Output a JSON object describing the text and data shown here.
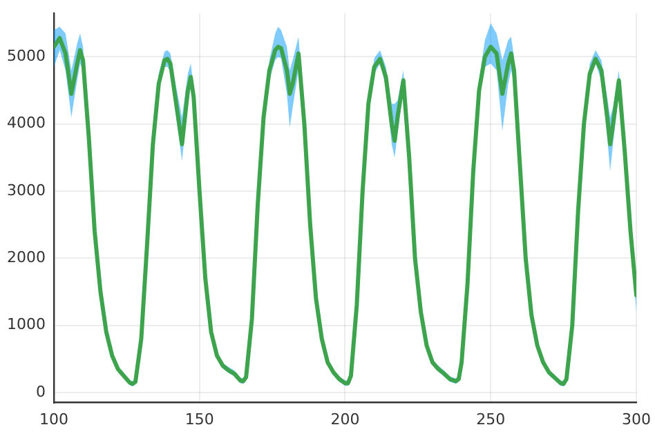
{
  "chart_data": {
    "type": "line",
    "xlim": [
      100,
      300
    ],
    "xticks": [
      100,
      150,
      200,
      250,
      300
    ],
    "ylim": [
      -150,
      5650
    ],
    "yticks": [
      0,
      1000,
      2000,
      3000,
      4000,
      5000
    ],
    "grid": true,
    "legend": false,
    "marker": "none",
    "line_style": "solid",
    "x": [
      100,
      102,
      104,
      106,
      108,
      109,
      110,
      112,
      114,
      116,
      118,
      120,
      122,
      124,
      126,
      127,
      128,
      130,
      132,
      134,
      136,
      138,
      139,
      140,
      142,
      144,
      146,
      147,
      148,
      150,
      152,
      154,
      156,
      158,
      160,
      162,
      164,
      165,
      166,
      168,
      170,
      172,
      174,
      176,
      177,
      178,
      180,
      181,
      182,
      184,
      186,
      188,
      190,
      192,
      194,
      196,
      198,
      200,
      201,
      202,
      204,
      206,
      208,
      210,
      212,
      214,
      216,
      217,
      218,
      220,
      222,
      224,
      226,
      228,
      230,
      232,
      234,
      236,
      238,
      239,
      240,
      242,
      244,
      246,
      248,
      250,
      252,
      254,
      256,
      257,
      258,
      260,
      262,
      264,
      266,
      268,
      270,
      272,
      274,
      275,
      276,
      278,
      280,
      282,
      284,
      286,
      288,
      290,
      291,
      292,
      294,
      296,
      298,
      300
    ],
    "series": [
      {
        "color": "#009af9",
        "values": [
          null,
          null,
          null,
          null,
          null,
          null,
          null,
          null,
          null,
          null,
          null,
          null,
          null,
          null,
          null,
          null,
          null,
          null,
          null,
          null,
          null,
          null,
          null,
          null,
          null,
          null,
          null,
          null,
          null,
          null,
          null,
          null,
          null,
          null,
          null,
          null,
          null,
          null,
          null,
          null,
          null,
          null,
          null,
          null,
          null,
          null,
          null,
          null,
          null,
          null,
          null,
          null,
          null,
          null,
          null,
          null,
          null,
          null,
          null,
          null,
          null,
          null,
          null,
          null,
          null,
          null,
          null,
          null,
          null,
          null,
          null,
          null,
          null,
          null,
          null,
          null,
          null,
          null,
          null,
          null,
          null,
          null,
          null,
          null,
          null,
          null,
          null,
          null,
          null,
          null,
          null,
          null,
          null,
          null,
          null,
          null,
          null,
          null,
          null,
          null,
          null,
          null,
          null,
          null,
          null,
          null,
          null,
          null,
          null,
          null,
          null,
          null,
          null,
          null
        ],
        "lower": [
          4850,
          5100,
          4800,
          4100,
          4650,
          4900,
          4800,
          3700,
          2300,
          1420,
          840,
          500,
          310,
          210,
          110,
          90,
          120,
          740,
          2120,
          3600,
          4500,
          4850,
          4850,
          4780,
          4100,
          3450,
          4300,
          4550,
          4300,
          2900,
          1620,
          840,
          500,
          360,
          290,
          240,
          140,
          130,
          190,
          1040,
          2720,
          4000,
          4650,
          4950,
          5000,
          4980,
          4450,
          3950,
          4250,
          4800,
          3850,
          2420,
          1330,
          740,
          400,
          260,
          160,
          100,
          100,
          210,
          1240,
          2920,
          4200,
          4750,
          4900,
          4550,
          3700,
          3500,
          3850,
          4500,
          3400,
          1920,
          1140,
          650,
          410,
          310,
          240,
          160,
          130,
          160,
          410,
          1530,
          3200,
          4400,
          4850,
          4900,
          4800,
          3900,
          4600,
          4800,
          4600,
          3300,
          1920,
          1080,
          650,
          410,
          260,
          180,
          100,
          90,
          160,
          940,
          2620,
          3900,
          4650,
          4900,
          4650,
          3800,
          3300,
          3700,
          4450,
          3500,
          2300,
          1200
        ],
        "upper": [
          5400,
          5450,
          5350,
          4800,
          5200,
          5350,
          5150,
          3950,
          2500,
          1580,
          960,
          600,
          390,
          290,
          190,
          170,
          200,
          860,
          2280,
          3800,
          4750,
          5080,
          5100,
          5050,
          4550,
          4100,
          4750,
          4900,
          4550,
          3100,
          1780,
          960,
          600,
          440,
          380,
          330,
          220,
          210,
          270,
          1160,
          2880,
          4200,
          4950,
          5350,
          5450,
          5400,
          5150,
          4800,
          4950,
          5300,
          4150,
          2580,
          1470,
          860,
          500,
          340,
          240,
          180,
          180,
          290,
          1360,
          3080,
          4400,
          4980,
          5100,
          4850,
          4300,
          4300,
          4350,
          4800,
          3600,
          2080,
          1260,
          750,
          490,
          400,
          330,
          240,
          210,
          240,
          490,
          1670,
          3400,
          4650,
          5250,
          5500,
          5350,
          4950,
          5250,
          5300,
          5000,
          3500,
          2080,
          1220,
          750,
          490,
          340,
          260,
          180,
          170,
          240,
          1060,
          2780,
          4100,
          4900,
          5100,
          4950,
          4400,
          4100,
          4250,
          4800,
          3700,
          2500,
          1700
        ]
      },
      {
        "color": "#3da44d",
        "values": [
          5150,
          5280,
          5050,
          4450,
          4900,
          5100,
          4950,
          3800,
          2400,
          1500,
          900,
          550,
          350,
          250,
          150,
          130,
          160,
          800,
          2200,
          3700,
          4600,
          4950,
          4970,
          4900,
          4300,
          3700,
          4500,
          4700,
          4400,
          3000,
          1700,
          900,
          550,
          400,
          330,
          280,
          180,
          170,
          230,
          1100,
          2800,
          4100,
          4800,
          5100,
          5150,
          5130,
          4800,
          4450,
          4600,
          5050,
          4000,
          2500,
          1400,
          800,
          450,
          300,
          200,
          140,
          140,
          250,
          1300,
          3000,
          4300,
          4850,
          4970,
          4700,
          4000,
          3750,
          4100,
          4650,
          3500,
          2000,
          1200,
          700,
          450,
          350,
          280,
          200,
          170,
          200,
          450,
          1600,
          3300,
          4500,
          5000,
          5150,
          5050,
          4450,
          4900,
          5050,
          4800,
          3400,
          2000,
          1150,
          700,
          450,
          300,
          220,
          140,
          130,
          200,
          1000,
          2700,
          4000,
          4750,
          4970,
          4800,
          4100,
          3700,
          4000,
          4650,
          3600,
          2400,
          1450
        ]
      }
    ]
  }
}
